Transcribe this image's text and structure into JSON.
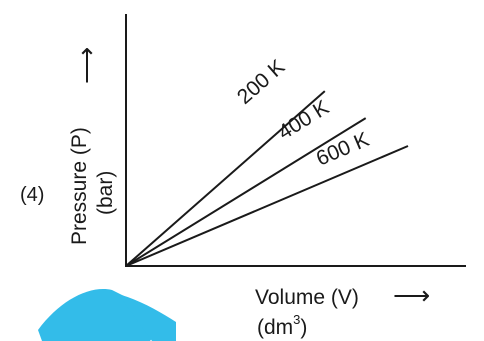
{
  "chart_data": {
    "type": "line",
    "option_label": "(4)",
    "xlabel": "Volume (V)",
    "xunit_base": "(dm",
    "xunit_sup": "3",
    "xunit_close": ")",
    "ylabel": "Pressure (P)",
    "yunit": "(bar)",
    "axis_arrow": "⟶",
    "grid": false,
    "series": [
      {
        "name": "200 K",
        "x": [
          0,
          1
        ],
        "y": [
          0,
          1.24
        ]
      },
      {
        "name": "400 K",
        "x": [
          0,
          1
        ],
        "y": [
          0,
          0.87
        ]
      },
      {
        "name": "600 K",
        "x": [
          0,
          1
        ],
        "y": [
          0,
          0.6
        ]
      }
    ]
  },
  "colors": {
    "ink": "#1a1a1a",
    "watermark": "#22b8e6"
  }
}
